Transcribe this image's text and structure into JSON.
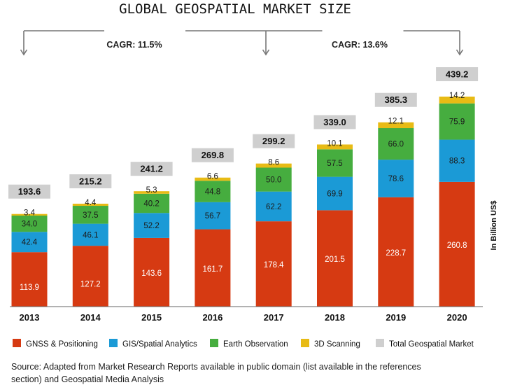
{
  "chart_data": {
    "type": "bar",
    "stacked": true,
    "title": "GLOBAL GEOSPATIAL MARKET SIZE",
    "categories": [
      "2013",
      "2014",
      "2015",
      "2016",
      "2017",
      "2018",
      "2019",
      "2020"
    ],
    "series": [
      {
        "name": "GNSS & Positioning",
        "color": "#d63a12",
        "values": [
          113.9,
          127.2,
          143.6,
          161.7,
          178.4,
          201.5,
          228.7,
          260.8
        ]
      },
      {
        "name": "GIS/Spatial Analytics",
        "color": "#1b9ad6",
        "values": [
          42.4,
          46.1,
          52.2,
          56.7,
          62.2,
          69.9,
          78.6,
          88.3
        ]
      },
      {
        "name": "Earth Observation",
        "color": "#46ad3f",
        "values": [
          34.0,
          37.5,
          40.2,
          44.8,
          50.0,
          57.5,
          66.0,
          75.9
        ]
      },
      {
        "name": "3D Scanning",
        "color": "#e8bb15",
        "values": [
          3.4,
          4.4,
          5.3,
          6.6,
          8.6,
          10.1,
          12.1,
          14.2
        ]
      }
    ],
    "totals": {
      "name": "Total Geospatial Market",
      "color": "#cfcfcf",
      "values": [
        193.6,
        215.2,
        241.2,
        269.8,
        299.2,
        339.0,
        385.3,
        439.2
      ]
    },
    "value_labels": {
      "GNSS & Positioning": [
        "113.9",
        "127.2",
        "143.6",
        "161.7",
        "178.4",
        "201.5",
        "228.7",
        "260.8"
      ],
      "GIS/Spatial Analytics": [
        "42.4",
        "46.1",
        "52.2",
        "56.7",
        "62.2",
        "69.9",
        "78.6",
        "88.3"
      ],
      "Earth Observation": [
        "34.0",
        "37.5",
        "40.2",
        "44.8",
        "50.0",
        "57.5",
        "66.0",
        "75.9"
      ],
      "3D Scanning": [
        "3.4",
        "4.4",
        "5.3",
        "6.6",
        "8.6",
        "10.1",
        "12.1",
        "14.2"
      ],
      "Total Geospatial Market": [
        "193.6",
        "215.2",
        "241.2",
        "269.8",
        "299.2",
        "339.0",
        "385.3",
        "439.2"
      ]
    },
    "cagr": [
      {
        "label": "CAGR: 11.5%",
        "from": "2013",
        "to": "2017"
      },
      {
        "label": "CAGR: 13.6%",
        "from": "2017",
        "to": "2020"
      }
    ],
    "ylabel": "In Billion US$",
    "ylim": [
      0,
      439.2
    ],
    "grid": false,
    "legend_position": "bottom",
    "source": "Source: Adapted from Market Research Reports available in public domain (list available in the references section) and Geospatial Media Analysis"
  }
}
